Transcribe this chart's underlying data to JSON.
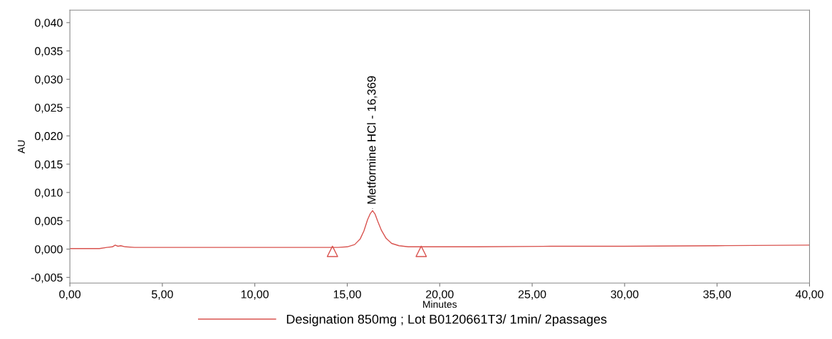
{
  "chart_data": {
    "type": "line",
    "xlabel": "Minutes",
    "ylabel": "AU",
    "series": [
      {
        "name": "Designation 850mg ; Lot B0120661T3/ 1min/ 2passages",
        "color": "#d9534f",
        "x": [
          0,
          1.0,
          1.6,
          2.0,
          2.3,
          2.45,
          2.6,
          2.75,
          3.0,
          3.5,
          4.0,
          6.0,
          10.0,
          13.0,
          14.5,
          15.0,
          15.4,
          15.7,
          15.9,
          16.1,
          16.25,
          16.369,
          16.5,
          16.65,
          16.85,
          17.1,
          17.4,
          17.8,
          18.3,
          19.0,
          22.0,
          26.0,
          30.0,
          35.0,
          40.0
        ],
        "values": [
          0.0001,
          0.0001,
          0.0001,
          0.0003,
          0.0004,
          0.0007,
          0.0005,
          0.0006,
          0.0004,
          0.0003,
          0.0003,
          0.0003,
          0.0003,
          0.0003,
          0.0003,
          0.0004,
          0.0008,
          0.0018,
          0.0032,
          0.0052,
          0.0063,
          0.0068,
          0.0062,
          0.0049,
          0.0033,
          0.0019,
          0.001,
          0.0006,
          0.0004,
          0.0004,
          0.0004,
          0.0005,
          0.0005,
          0.0006,
          0.0007
        ]
      },
      {
        "type": "scatter",
        "marker": "triangle",
        "color": "#d9534f",
        "x": [
          14.2,
          19.0
        ],
        "values": [
          -0.0004,
          -0.0004
        ]
      }
    ],
    "annotations": [
      {
        "text": "Metformine HCl - 16,369",
        "x": 16.369,
        "y": 0.0068
      }
    ],
    "xlim": [
      0,
      40
    ],
    "ylim": [
      -0.006,
      0.0422
    ],
    "xticks": [
      {
        "value": 0,
        "label": "0,00"
      },
      {
        "value": 5,
        "label": "5,00"
      },
      {
        "value": 10,
        "label": "10,00"
      },
      {
        "value": 15,
        "label": "15,00"
      },
      {
        "value": 20,
        "label": "20,00"
      },
      {
        "value": 25,
        "label": "25,00"
      },
      {
        "value": 30,
        "label": "30,00"
      },
      {
        "value": 35,
        "label": "35,00"
      },
      {
        "value": 40,
        "label": "40,00"
      }
    ],
    "yticks": [
      {
        "value": -0.005,
        "label": "-0,005"
      },
      {
        "value": 0,
        "label": "0,000"
      },
      {
        "value": 0.005,
        "label": "0,005"
      },
      {
        "value": 0.01,
        "label": "0,010"
      },
      {
        "value": 0.015,
        "label": "0,015"
      },
      {
        "value": 0.02,
        "label": "0,020"
      },
      {
        "value": 0.025,
        "label": "0,025"
      },
      {
        "value": 0.03,
        "label": "0,030"
      },
      {
        "value": 0.035,
        "label": "0,035"
      },
      {
        "value": 0.04,
        "label": "0,040"
      }
    ],
    "grid": false,
    "legend": "bottom"
  }
}
